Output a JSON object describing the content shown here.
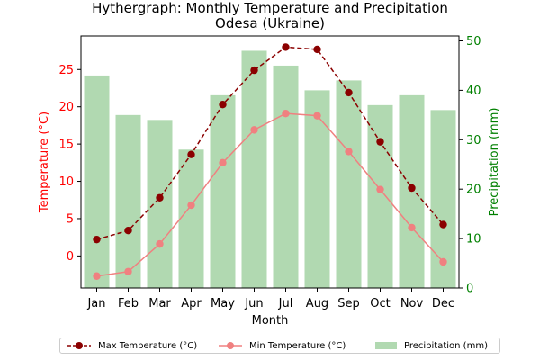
{
  "chart_data": {
    "type": "bar+line",
    "title": "Hythergraph: Monthly Temperature and Precipitation",
    "subtitle": "Odesa (Ukraine)",
    "xlabel": "Month",
    "ylabel_left": "Temperature (°C)",
    "ylabel_right": "Precipitation (mm)",
    "categories": [
      "Jan",
      "Feb",
      "Mar",
      "Apr",
      "May",
      "Jun",
      "Jul",
      "Aug",
      "Sep",
      "Oct",
      "Nov",
      "Dec"
    ],
    "ylim_left": [
      -4.3,
      29.5
    ],
    "yticks_left": [
      0,
      5,
      10,
      15,
      20,
      25
    ],
    "ylim_right": [
      0,
      51
    ],
    "yticks_right": [
      0,
      10,
      20,
      30,
      40,
      50
    ],
    "legend_position": "bottom-center",
    "grid": false,
    "series": [
      {
        "name": "Max Temperature (°C)",
        "type": "line",
        "axis": "left",
        "color": "#8b0000",
        "line_style": "dashed",
        "values": [
          2.2,
          3.4,
          7.8,
          13.6,
          20.3,
          24.9,
          28.0,
          27.7,
          21.9,
          15.3,
          9.1,
          4.2
        ]
      },
      {
        "name": "Min Temperature (°C)",
        "type": "line",
        "axis": "left",
        "color": "#f08080",
        "line_style": "solid",
        "values": [
          -2.7,
          -2.1,
          1.6,
          6.8,
          12.5,
          16.9,
          19.1,
          18.8,
          14.0,
          8.9,
          3.8,
          -0.8
        ]
      },
      {
        "name": "Precipitation (mm)",
        "type": "bar",
        "axis": "right",
        "color": "#b1d9b1",
        "values": [
          43,
          35,
          34,
          28,
          39,
          48,
          45,
          40,
          42,
          37,
          39,
          36
        ]
      }
    ]
  }
}
